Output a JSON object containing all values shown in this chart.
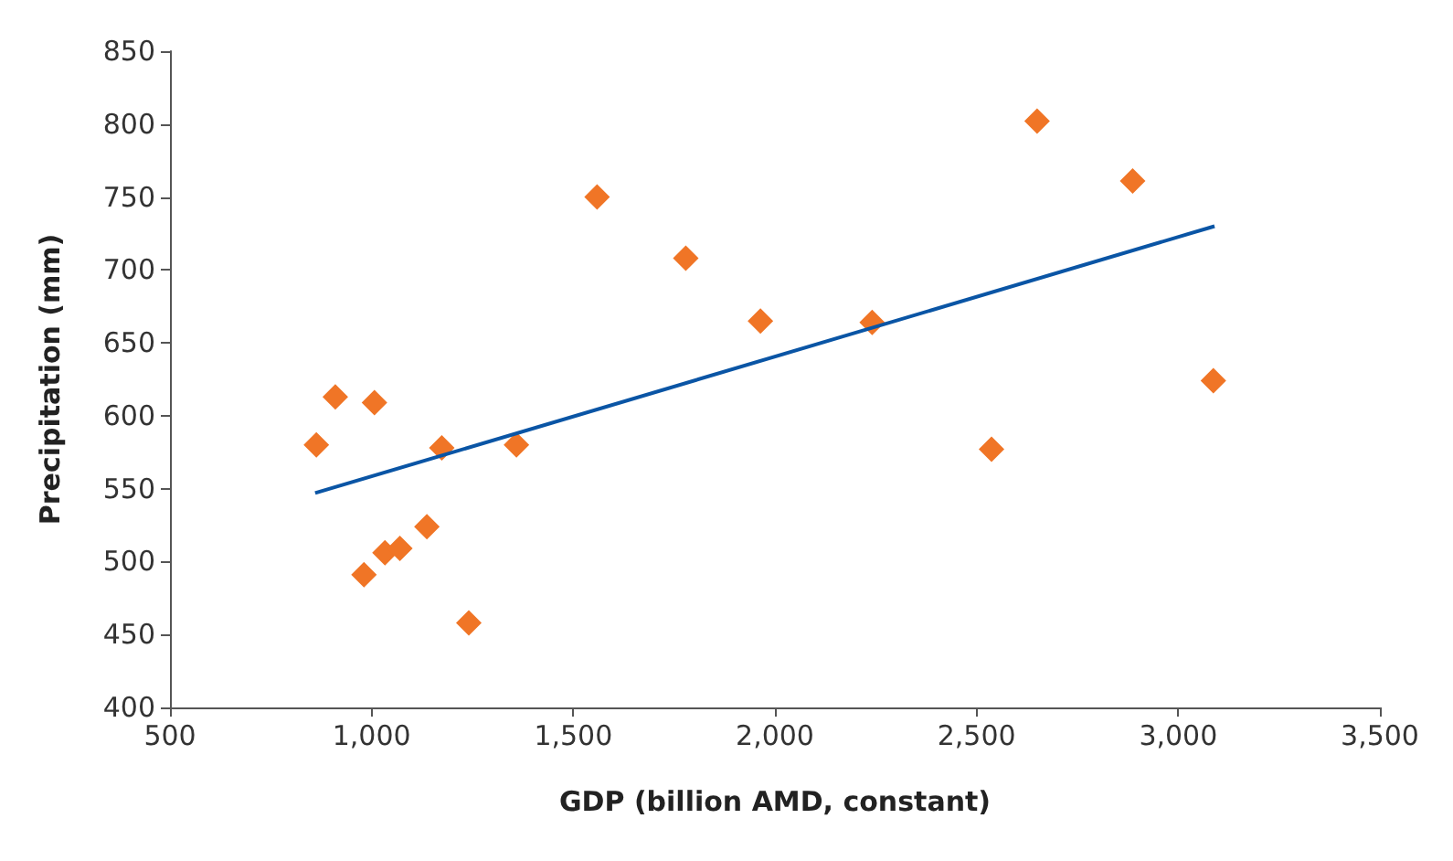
{
  "chart_data": {
    "type": "scatter",
    "xlabel": "GDP (billion AMD, constant)",
    "ylabel": "Precipitation (mm)",
    "xlim": [
      500,
      3500
    ],
    "xticks": [
      {
        "value": 500,
        "label": "500"
      },
      {
        "value": 1000,
        "label": "1,000"
      },
      {
        "value": 1500,
        "label": "1,500"
      },
      {
        "value": 2000,
        "label": "2,000"
      },
      {
        "value": 2500,
        "label": "2,500"
      },
      {
        "value": 3000,
        "label": "3,000"
      },
      {
        "value": 3500,
        "label": "3,500"
      }
    ],
    "ylim": [
      400,
      850
    ],
    "yticks": [
      400,
      450,
      500,
      550,
      600,
      650,
      700,
      750,
      800,
      850
    ],
    "grid": false,
    "marker": "diamond",
    "series": [
      {
        "color": "#f07526",
        "x": [
          863,
          910,
          1007,
          981,
          1033,
          1070,
          1137,
          1174,
          1241,
          1359,
          1559,
          1779,
          1964,
          2241,
          2650,
          2887,
          3087,
          2537
        ],
        "values": [
          580,
          613,
          609,
          491,
          506,
          509,
          524,
          578,
          458,
          580,
          750,
          708,
          665,
          664,
          802,
          761,
          624,
          577
        ]
      },
      {
        "type": "line",
        "color": "#0a55a5",
        "x": [
          860,
          3090
        ],
        "values": [
          547,
          730
        ],
        "marker": "none",
        "line_style": "solid"
      }
    ]
  }
}
